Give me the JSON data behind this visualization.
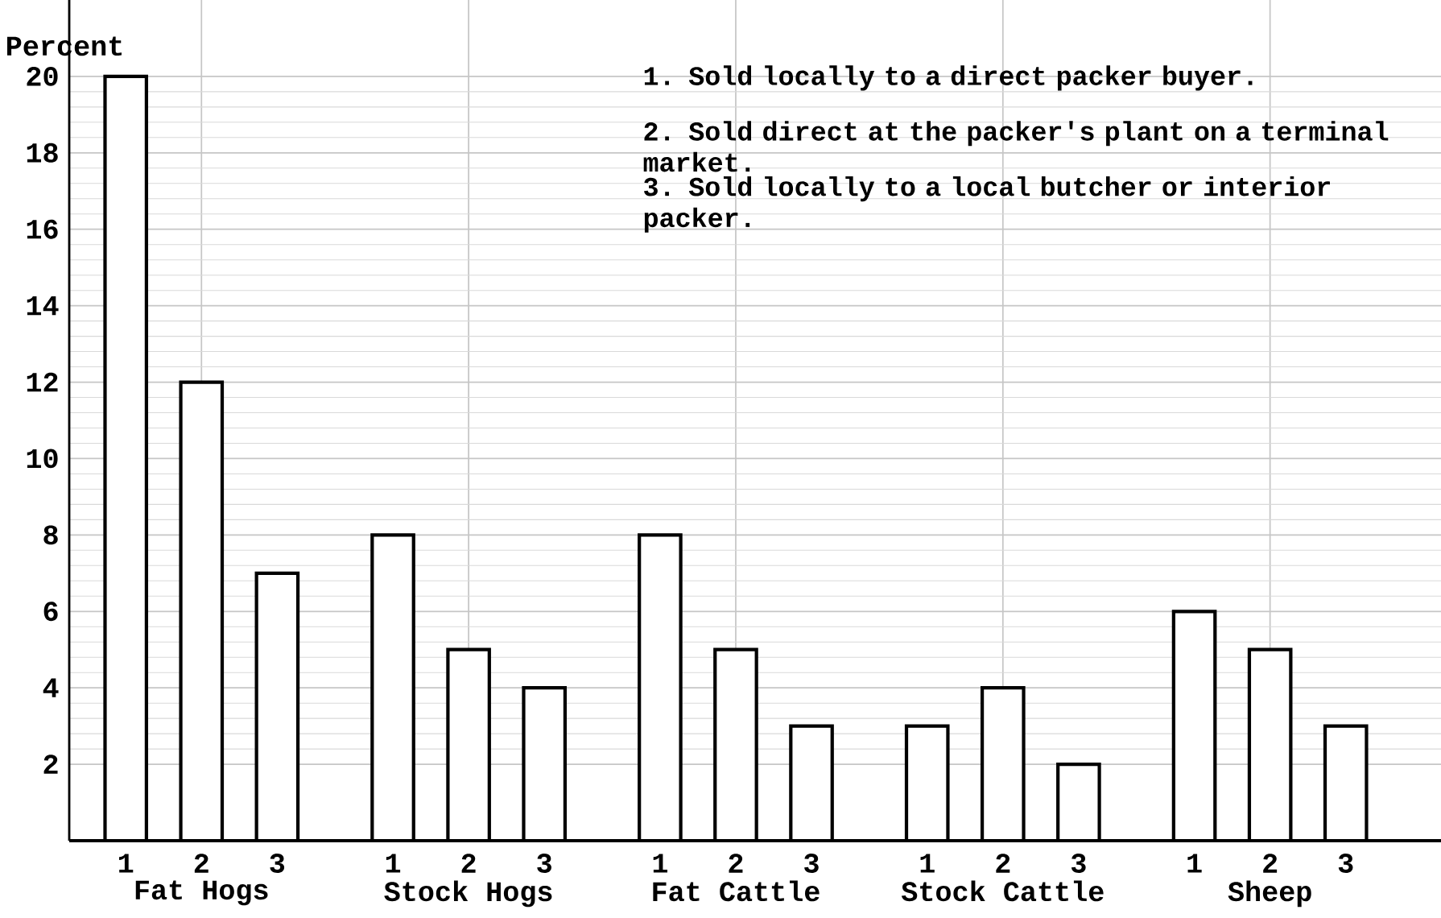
{
  "chart_data": {
    "type": "bar",
    "ylabel": "Percent",
    "categories": [
      "Fat Hogs",
      "Stock Hogs",
      "Fat Cattle",
      "Stock Cattle",
      "Sheep"
    ],
    "series": [
      {
        "name": "1",
        "color": "#000000",
        "values": [
          20,
          8,
          8,
          3,
          6
        ]
      },
      {
        "name": "2",
        "color": "#000000",
        "values": [
          12,
          5,
          5,
          4,
          5
        ]
      },
      {
        "name": "3",
        "color": "#000000",
        "values": [
          7,
          4,
          3,
          2,
          3
        ]
      }
    ],
    "ylim": [
      0,
      22
    ],
    "yticks": [
      2,
      4,
      6,
      8,
      10,
      12,
      14,
      16,
      18,
      20
    ],
    "grid": true,
    "annotations": [
      "1.  Sold locally to a direct packer buyer.",
      "2.  Sold direct at the packer's plant on a terminal market.",
      "3.  Sold locally to a local butcher or interior packer."
    ]
  }
}
